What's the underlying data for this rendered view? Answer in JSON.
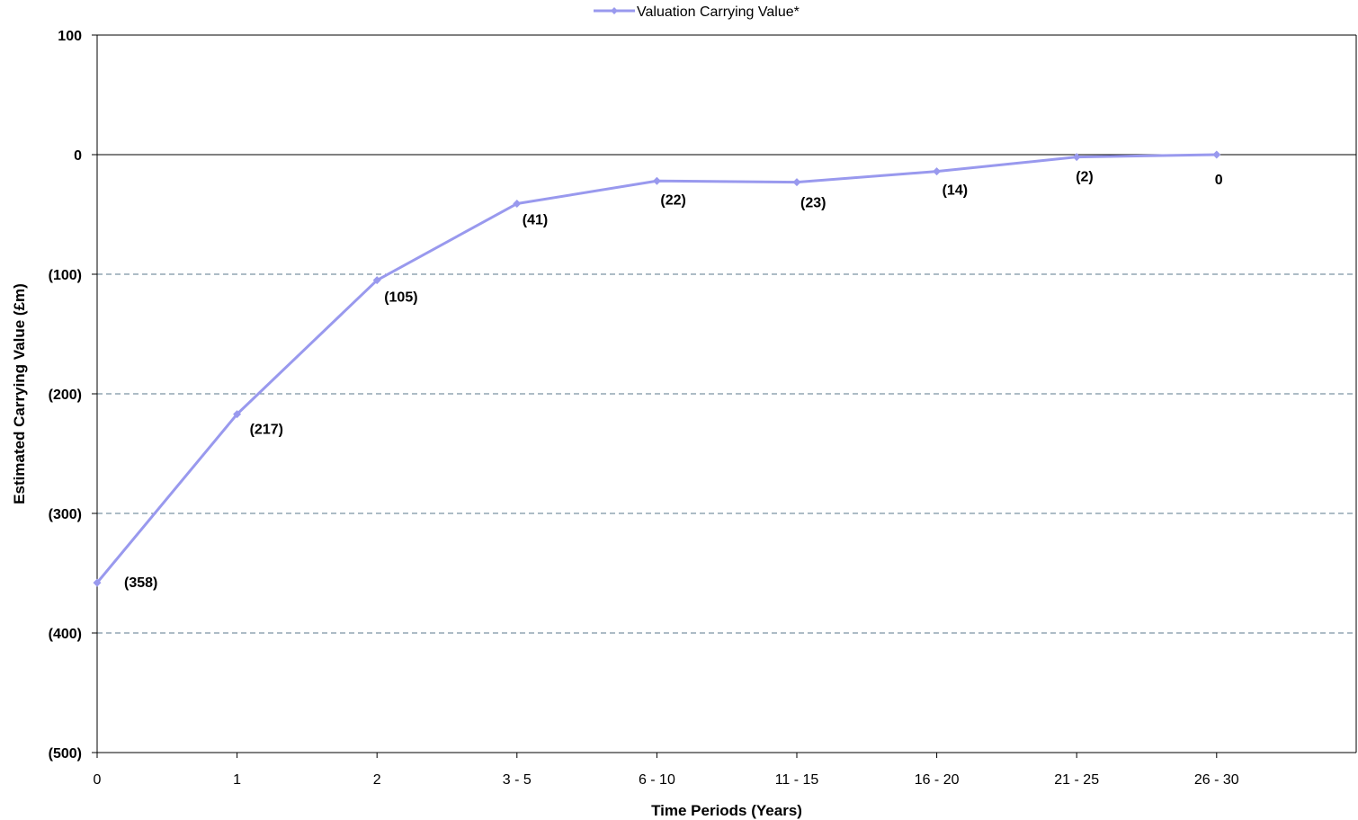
{
  "chart_data": {
    "type": "line",
    "categories": [
      "0",
      "1",
      "2",
      "3 - 5",
      "6 - 10",
      "11 - 15",
      "16 - 20",
      "21 - 25",
      "26 - 30"
    ],
    "series": [
      {
        "name": "Valuation Carrying Value*",
        "values": [
          -358,
          -217,
          -105,
          -41,
          -22,
          -23,
          -14,
          -2,
          0
        ],
        "color": "#9999ee"
      }
    ],
    "data_labels": [
      "(358)",
      "(217)",
      "(105)",
      "(41)",
      "(22)",
      "(23)",
      "(14)",
      "(2)",
      "0"
    ],
    "xlabel": "Time Periods (Years)",
    "ylabel": "Estimated Carrying Value (£m)",
    "ylim": [
      -500,
      100
    ],
    "yticks": [
      100,
      0,
      -100,
      -200,
      -300,
      -400,
      -500
    ],
    "ytick_labels": [
      "100",
      "0",
      "(100)",
      "(200)",
      "(300)",
      "(400)",
      "(500)"
    ],
    "grid": "horizontal dashed",
    "legend": "top-center"
  }
}
